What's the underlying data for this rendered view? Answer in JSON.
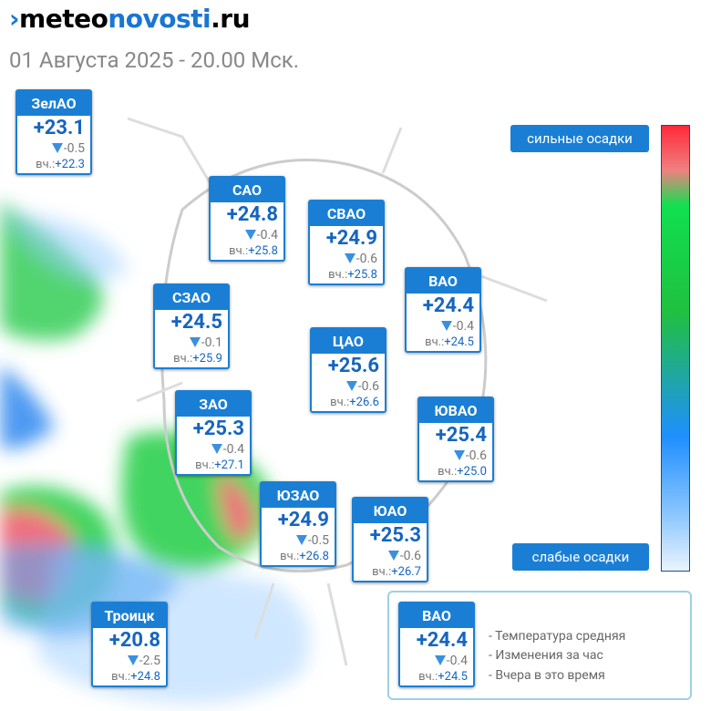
{
  "header": {
    "logo_part1": "meteo",
    "logo_part2": "novosti",
    "logo_part3": ".ru",
    "subtitle": "01 Августа 2025 - 20.00 Мск."
  },
  "scale": {
    "top_label": "сильные осадки",
    "bottom_label": "слабые осадки"
  },
  "districts": [
    {
      "name": "ЗелАО",
      "temp": "+23.1",
      "change": "-0.5",
      "yesterday_label": "вч.:",
      "yesterday": "+22.3"
    },
    {
      "name": "САО",
      "temp": "+24.8",
      "change": "-0.4",
      "yesterday_label": "вч.:",
      "yesterday": "+25.8"
    },
    {
      "name": "СВАО",
      "temp": "+24.9",
      "change": "-0.6",
      "yesterday_label": "вч.:",
      "yesterday": "+25.8"
    },
    {
      "name": "ВАО",
      "temp": "+24.4",
      "change": "-0.4",
      "yesterday_label": "вч.:",
      "yesterday": "+24.5"
    },
    {
      "name": "СЗАО",
      "temp": "+24.5",
      "change": "-0.1",
      "yesterday_label": "вч.:",
      "yesterday": "+25.9"
    },
    {
      "name": "ЦАО",
      "temp": "+25.6",
      "change": "-0.6",
      "yesterday_label": "вч.:",
      "yesterday": "+26.6"
    },
    {
      "name": "ЗАО",
      "temp": "+25.3",
      "change": "-0.4",
      "yesterday_label": "вч.:",
      "yesterday": "+27.1"
    },
    {
      "name": "ЮВАО",
      "temp": "+25.4",
      "change": "-0.6",
      "yesterday_label": "вч.:",
      "yesterday": "+25.0"
    },
    {
      "name": "ЮЗАО",
      "temp": "+24.9",
      "change": "-0.5",
      "yesterday_label": "вч.:",
      "yesterday": "+26.8"
    },
    {
      "name": "ЮАО",
      "temp": "+25.3",
      "change": "-0.6",
      "yesterday_label": "вч.:",
      "yesterday": "+26.7"
    },
    {
      "name": "Троицк",
      "temp": "+20.8",
      "change": "-2.5",
      "yesterday_label": "вч.:",
      "yesterday": "+24.8"
    }
  ],
  "legend": {
    "example": {
      "name": "ВАО",
      "temp": "+24.4",
      "change": "-0.4",
      "yesterday_label": "вч.:",
      "yesterday": "+24.5"
    },
    "items": [
      "- Температура средняя",
      "- Изменения за час",
      "- Вчера в это время"
    ]
  }
}
